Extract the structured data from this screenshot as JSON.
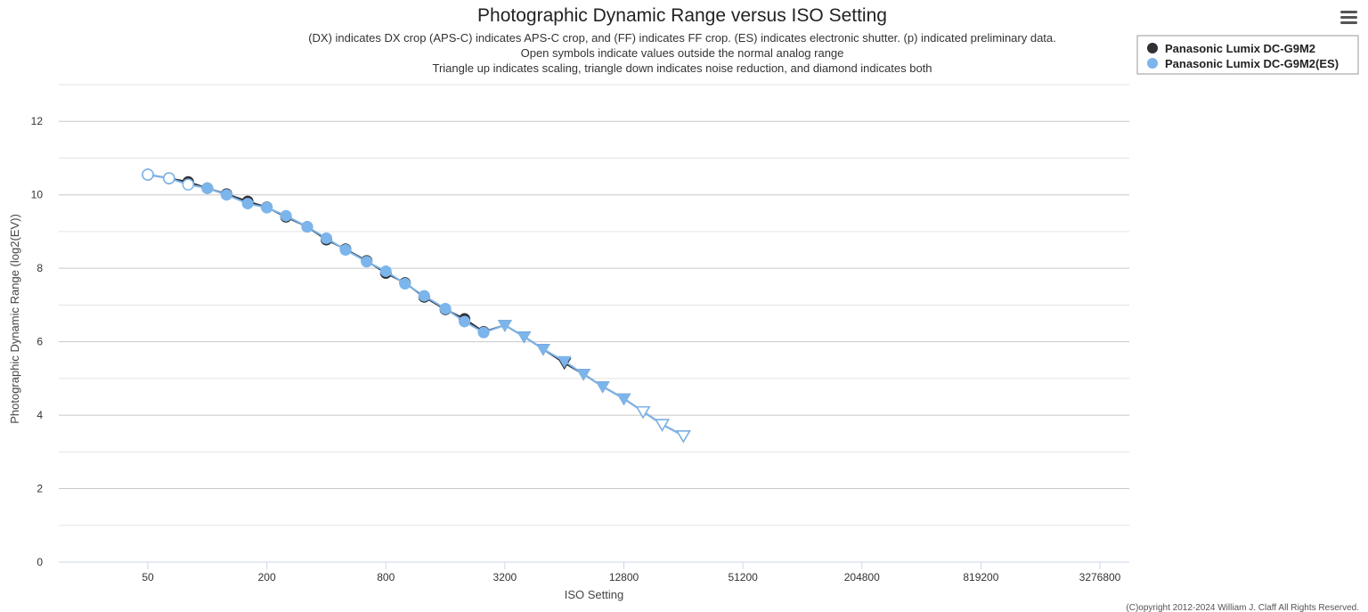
{
  "chart_data": {
    "type": "line",
    "title": "Photographic Dynamic Range versus ISO Setting",
    "subtitle": [
      "(DX) indicates DX crop (APS-C) indicates APS-C crop, and (FF) indicates FF crop. (ES) indicates electronic shutter. (p) indicated preliminary data.",
      "Open symbols indicate values outside the normal analog range",
      "Triangle up indicates scaling, triangle down indicates noise reduction, and diamond indicates both"
    ],
    "xlabel": "ISO Setting",
    "ylabel": "Photographic Dynamic Range (log2(EV))",
    "x_scale": "log2",
    "x_ticks": [
      "50",
      "200",
      "800",
      "3200",
      "12800",
      "51200",
      "204800",
      "819200",
      "3276800"
    ],
    "y_ticks": [
      "0",
      "2",
      "4",
      "6",
      "8",
      "10",
      "12"
    ],
    "xlim": [
      50,
      3276800
    ],
    "ylim": [
      0,
      13
    ],
    "grid": true,
    "legend_position": "top-right",
    "credit": "(C)opyright 2012-2024 William J. Claff All Rights Reserved.",
    "series": [
      {
        "name": "Panasonic Lumix DC-G9M2",
        "color": "#2f3136",
        "points": [
          {
            "x": 50,
            "y": 10.55,
            "marker": "open-circle"
          },
          {
            "x": 64,
            "y": 10.45,
            "marker": "open-circle"
          },
          {
            "x": 80,
            "y": 10.35,
            "marker": "circle"
          },
          {
            "x": 100,
            "y": 10.18,
            "marker": "circle"
          },
          {
            "x": 125,
            "y": 10.02,
            "marker": "circle"
          },
          {
            "x": 160,
            "y": 9.82,
            "marker": "circle"
          },
          {
            "x": 200,
            "y": 9.66,
            "marker": "circle"
          },
          {
            "x": 250,
            "y": 9.4,
            "marker": "circle"
          },
          {
            "x": 320,
            "y": 9.13,
            "marker": "circle"
          },
          {
            "x": 400,
            "y": 8.78,
            "marker": "circle"
          },
          {
            "x": 500,
            "y": 8.52,
            "marker": "circle"
          },
          {
            "x": 640,
            "y": 8.2,
            "marker": "circle"
          },
          {
            "x": 800,
            "y": 7.87,
            "marker": "circle"
          },
          {
            "x": 1000,
            "y": 7.6,
            "marker": "circle"
          },
          {
            "x": 1250,
            "y": 7.22,
            "marker": "circle"
          },
          {
            "x": 1600,
            "y": 6.88,
            "marker": "circle"
          },
          {
            "x": 2000,
            "y": 6.62,
            "marker": "circle"
          },
          {
            "x": 2500,
            "y": 6.27,
            "marker": "circle"
          },
          {
            "x": 3200,
            "y": 6.45,
            "marker": "triangle-down"
          },
          {
            "x": 4000,
            "y": 6.14,
            "marker": "triangle-down"
          },
          {
            "x": 5000,
            "y": 5.8,
            "marker": "triangle-down"
          },
          {
            "x": 6400,
            "y": 5.42,
            "marker": "triangle-down"
          },
          {
            "x": 8000,
            "y": 5.12,
            "marker": "triangle-down"
          },
          {
            "x": 10000,
            "y": 4.78,
            "marker": "triangle-down"
          },
          {
            "x": 12800,
            "y": 4.45,
            "marker": "triangle-down"
          },
          {
            "x": 16000,
            "y": 4.1,
            "marker": "open-triangle-down"
          },
          {
            "x": 20000,
            "y": 3.75,
            "marker": "open-triangle-down"
          },
          {
            "x": 25600,
            "y": 3.44,
            "marker": "open-triangle-down"
          }
        ]
      },
      {
        "name": "Panasonic Lumix DC-G9M2(ES)",
        "color": "#7cb5ec",
        "points": [
          {
            "x": 50,
            "y": 10.55,
            "marker": "open-circle"
          },
          {
            "x": 64,
            "y": 10.45,
            "marker": "open-circle"
          },
          {
            "x": 80,
            "y": 10.28,
            "marker": "open-circle"
          },
          {
            "x": 100,
            "y": 10.18,
            "marker": "circle"
          },
          {
            "x": 125,
            "y": 10.0,
            "marker": "circle"
          },
          {
            "x": 160,
            "y": 9.76,
            "marker": "circle"
          },
          {
            "x": 200,
            "y": 9.65,
            "marker": "circle"
          },
          {
            "x": 250,
            "y": 9.43,
            "marker": "circle"
          },
          {
            "x": 320,
            "y": 9.13,
            "marker": "circle"
          },
          {
            "x": 400,
            "y": 8.82,
            "marker": "circle"
          },
          {
            "x": 500,
            "y": 8.5,
            "marker": "circle"
          },
          {
            "x": 640,
            "y": 8.18,
            "marker": "circle"
          },
          {
            "x": 800,
            "y": 7.92,
            "marker": "circle"
          },
          {
            "x": 1000,
            "y": 7.58,
            "marker": "circle"
          },
          {
            "x": 1250,
            "y": 7.25,
            "marker": "circle"
          },
          {
            "x": 1600,
            "y": 6.9,
            "marker": "circle"
          },
          {
            "x": 2000,
            "y": 6.55,
            "marker": "circle"
          },
          {
            "x": 2500,
            "y": 6.25,
            "marker": "circle"
          },
          {
            "x": 3200,
            "y": 6.45,
            "marker": "triangle-down"
          },
          {
            "x": 4000,
            "y": 6.14,
            "marker": "triangle-down"
          },
          {
            "x": 5000,
            "y": 5.8,
            "marker": "triangle-down"
          },
          {
            "x": 6400,
            "y": 5.47,
            "marker": "triangle-down"
          },
          {
            "x": 8000,
            "y": 5.12,
            "marker": "triangle-down"
          },
          {
            "x": 10000,
            "y": 4.78,
            "marker": "triangle-down"
          },
          {
            "x": 12800,
            "y": 4.45,
            "marker": "triangle-down"
          },
          {
            "x": 16000,
            "y": 4.1,
            "marker": "open-triangle-down"
          },
          {
            "x": 20000,
            "y": 3.75,
            "marker": "open-triangle-down"
          },
          {
            "x": 25600,
            "y": 3.44,
            "marker": "open-triangle-down"
          }
        ]
      }
    ]
  },
  "toolbar": {
    "menu_icon": "hamburger-menu-icon"
  }
}
